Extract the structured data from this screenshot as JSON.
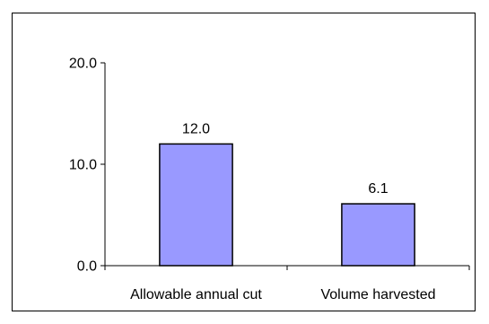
{
  "chart_data": {
    "type": "bar",
    "categories": [
      "Allowable annual cut",
      "Volume harvested"
    ],
    "values": [
      12.0,
      6.1
    ],
    "value_labels": [
      "12.0",
      "6.1"
    ],
    "y_ticks": [
      "0.0",
      "10.0",
      "20.0"
    ],
    "ylim": [
      0,
      20
    ],
    "grid": false,
    "legend": "none",
    "bar_color": "#9999ff",
    "bar_outline_color": "#000000"
  }
}
